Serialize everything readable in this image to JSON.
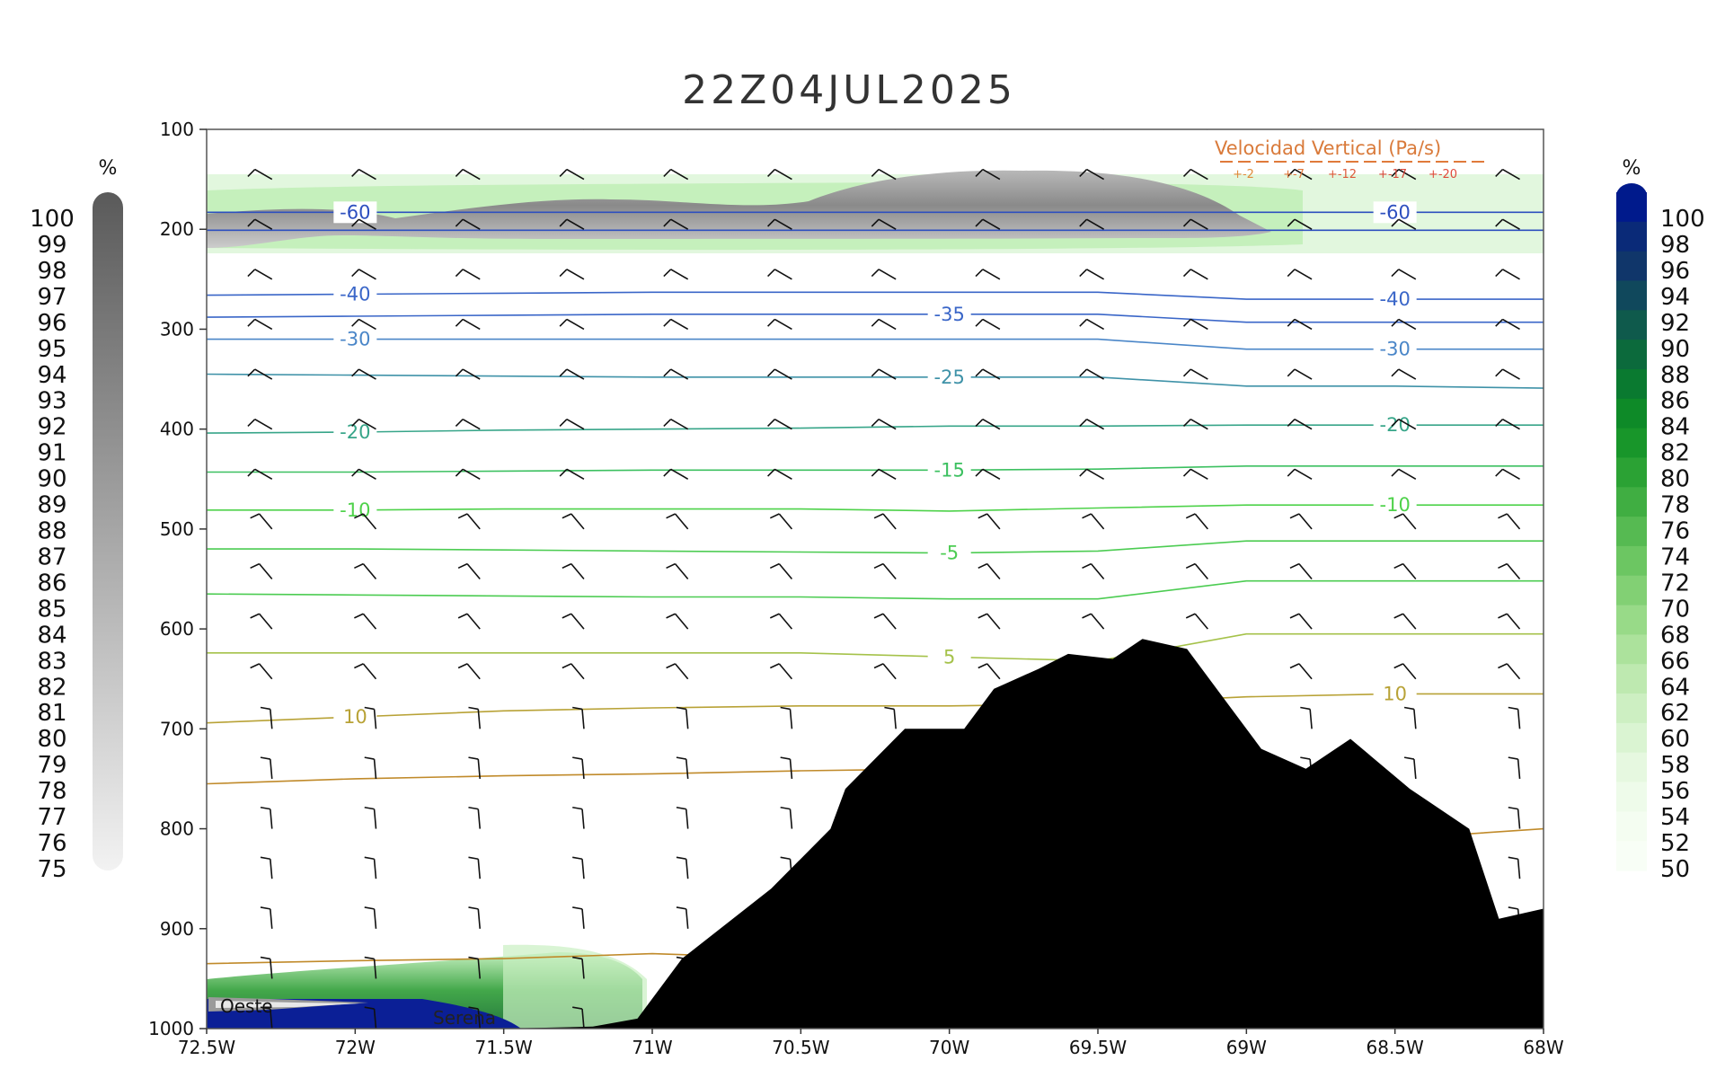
{
  "title": "22Z04JUL2025",
  "chart_data": {
    "type": "cross-section",
    "title": "22Z04JUL2025",
    "x_ticks": [
      "72.5W",
      "72W",
      "71.5W",
      "71W",
      "70.5W",
      "70W",
      "69.5W",
      "69W",
      "68.5W",
      "68W"
    ],
    "xlim": [
      -72.5,
      -68
    ],
    "y_ticks": [
      100,
      200,
      300,
      400,
      500,
      600,
      700,
      800,
      900,
      1000
    ],
    "ylim": [
      1000,
      100
    ],
    "temperature_contours": [
      {
        "label": "-60",
        "color": "#2d4fbf",
        "p": [
          183,
          183,
          183,
          183,
          183,
          183,
          183,
          183,
          183,
          183
        ]
      },
      {
        "label": "",
        "color": "#2d4fbf",
        "p": [
          201,
          201,
          201,
          201,
          201,
          201,
          201,
          201,
          201,
          201
        ]
      },
      {
        "label": "-40",
        "color": "#3a66c8",
        "p": [
          266,
          265,
          264,
          263,
          263,
          263,
          263,
          270,
          270,
          270
        ]
      },
      {
        "label": "-35",
        "color": "#3a66c8",
        "p": [
          288,
          287,
          286,
          285,
          285,
          285,
          285,
          293,
          293,
          293
        ]
      },
      {
        "label": "-30",
        "color": "#4a86c8",
        "p": [
          310,
          310,
          310,
          310,
          310,
          310,
          310,
          320,
          320,
          320
        ]
      },
      {
        "label": "-25",
        "color": "#3f92a8",
        "p": [
          345,
          346,
          347,
          348,
          348,
          348,
          348,
          357,
          357,
          359
        ]
      },
      {
        "label": "-20",
        "color": "#37a589",
        "p": [
          404,
          403,
          401,
          400,
          399,
          397,
          397,
          396,
          396,
          396
        ]
      },
      {
        "label": "-15",
        "color": "#3cc060",
        "p": [
          443,
          443,
          442,
          441,
          441,
          441,
          440,
          437,
          437,
          437
        ]
      },
      {
        "label": "-10",
        "color": "#4ed24a",
        "p": [
          481,
          481,
          480,
          480,
          480,
          482,
          479,
          476,
          476,
          476
        ]
      },
      {
        "label": "-5",
        "color": "#4ccc52",
        "p": [
          520,
          520,
          521,
          522,
          523,
          524,
          522,
          512,
          512,
          512
        ]
      },
      {
        "label": "",
        "color": "#4ccc52",
        "p": [
          565,
          566,
          567,
          568,
          568,
          570,
          570,
          552,
          552,
          552
        ]
      },
      {
        "label": "5",
        "color": "#a5c24a",
        "p": [
          624,
          624,
          624,
          624,
          624,
          628,
          632,
          605,
          605,
          605
        ]
      },
      {
        "label": "10",
        "color": "#b8a236",
        "p": [
          694,
          688,
          682,
          679,
          677,
          677,
          675,
          668,
          665,
          665
        ]
      },
      {
        "label": "",
        "color": "#c08a2a",
        "p": [
          755,
          750,
          747,
          745,
          742,
          740,
          738,
          780,
          810,
          800
        ]
      },
      {
        "label": "",
        "color": "#c08a2a",
        "p": [
          935,
          932,
          930,
          925,
          930,
          930,
          930,
          930,
          930,
          930
        ]
      }
    ],
    "wind_barb_levels": [
      100,
      150,
      200,
      250,
      300,
      350,
      400,
      450,
      500,
      550,
      600,
      650,
      700,
      750,
      800,
      850,
      900,
      950,
      1000
    ],
    "terrain_profile": {
      "lon": [
        -72.5,
        -71.5,
        -71.2,
        -71.05,
        -70.9,
        -70.6,
        -70.4,
        -70.35,
        -70.15,
        -69.95,
        -69.85,
        -69.7,
        -69.6,
        -69.45,
        -69.35,
        -69.2,
        -69.05,
        -68.95,
        -68.8,
        -68.65,
        -68.45,
        -68.25,
        -68.15,
        -68
      ],
      "p": [
        1005,
        1005,
        998,
        990,
        930,
        860,
        800,
        760,
        700,
        700,
        660,
        640,
        625,
        630,
        610,
        620,
        680,
        720,
        740,
        710,
        760,
        800,
        890,
        880
      ]
    },
    "annotations": [
      "Oeste",
      "Serena"
    ],
    "legend": {
      "title": "Velocidad Vertical  (Pa/s)",
      "entries": [
        "+-2",
        "+-7",
        "+-12",
        "+-17",
        "+-20"
      ],
      "colors": [
        "#e08a3a",
        "#e0763a",
        "#dd5a3a",
        "#d8483a",
        "#e04a3a"
      ],
      "position": "top-right"
    },
    "colorbar_left": {
      "unit": "%",
      "labels": [
        "100",
        "99",
        "98",
        "97",
        "96",
        "95",
        "94",
        "93",
        "92",
        "91",
        "90",
        "89",
        "88",
        "87",
        "86",
        "85",
        "84",
        "83",
        "82",
        "81",
        "80",
        "79",
        "78",
        "77",
        "76",
        "75"
      ],
      "range": [
        75,
        100
      ],
      "color_low": "#f2f2f2",
      "color_high": "#5a5a5a"
    },
    "colorbar_right": {
      "unit": "%",
      "labels": [
        "100",
        "98",
        "96",
        "94",
        "92",
        "90",
        "88",
        "86",
        "84",
        "82",
        "80",
        "78",
        "76",
        "74",
        "72",
        "70",
        "68",
        "66",
        "64",
        "62",
        "60",
        "58",
        "56",
        "54",
        "52",
        "50"
      ],
      "range": [
        50,
        100
      ],
      "colors": [
        "#001a8c",
        "#0a2a78",
        "#10366a",
        "#10485c",
        "#0f5a4c",
        "#0c6a3c",
        "#0a7a30",
        "#0e8a28",
        "#18962a",
        "#2ba234",
        "#40ae42",
        "#56ba52",
        "#6cc662",
        "#82d074",
        "#98da88",
        "#acE29c",
        "#bee9b0",
        "#cdefc2",
        "#daf4d2",
        "#e6f8e0",
        "#eefbea",
        "#f4fdf1",
        "#f8fef6"
      ]
    }
  }
}
